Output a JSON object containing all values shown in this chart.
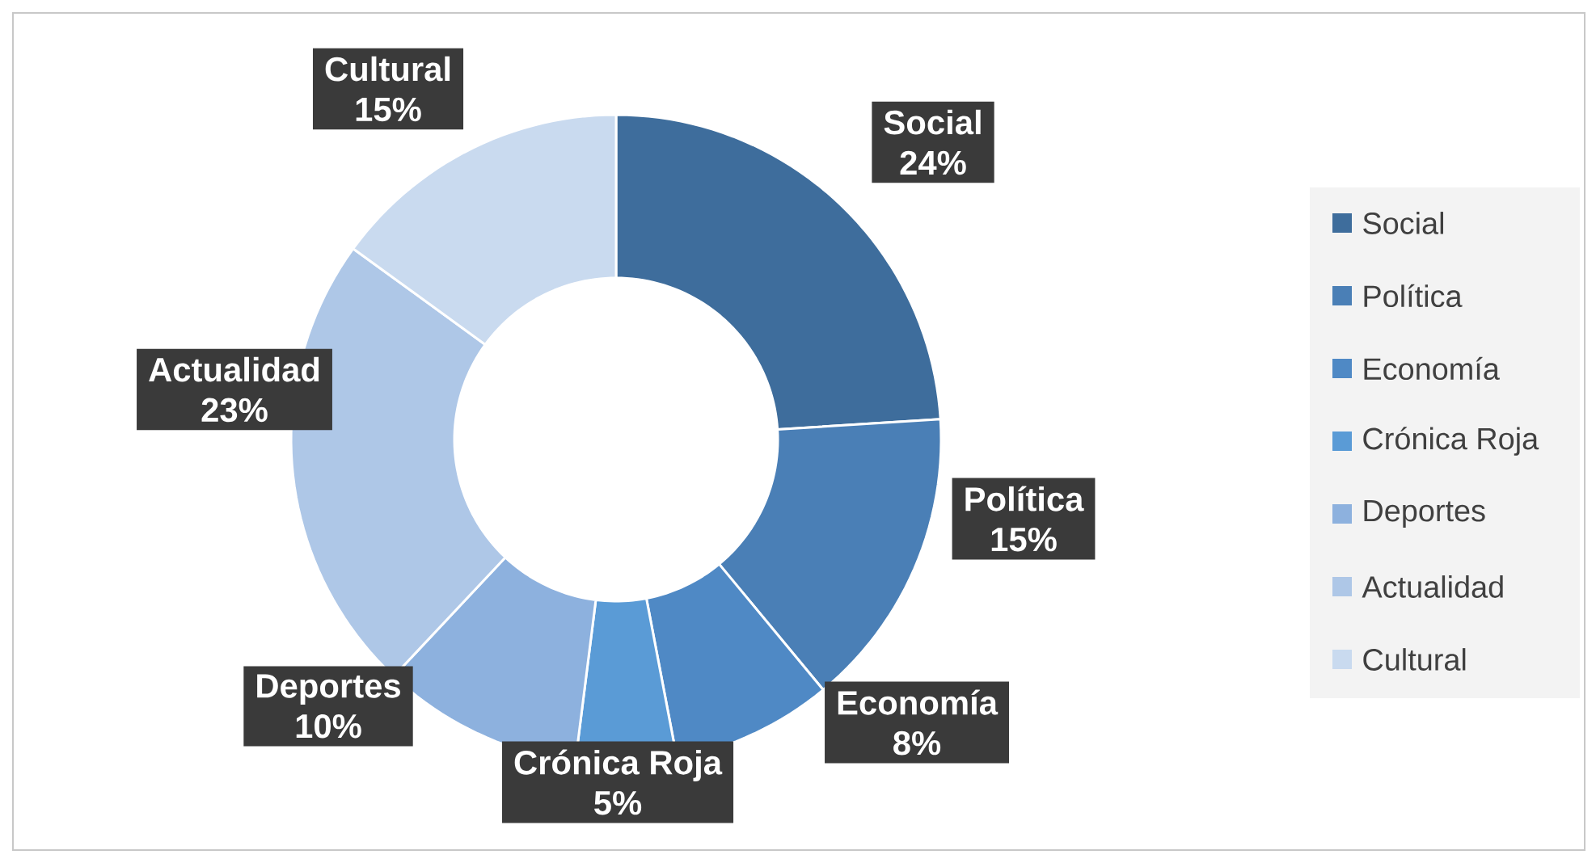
{
  "chart_data": {
    "type": "donut",
    "categories": [
      "Social",
      "Política",
      "Economía",
      "Crónica Roja",
      "Deportes",
      "Actualidad",
      "Cultural"
    ],
    "values": [
      24,
      15,
      8,
      5,
      10,
      23,
      15
    ],
    "value_labels": [
      "24%",
      "15%",
      "8%",
      "5%",
      "10%",
      "23%",
      "15%"
    ],
    "colors": [
      "#3e6d9c",
      "#4a7fb6",
      "#4f89c5",
      "#5a9bd6",
      "#8db1de",
      "#aec7e7",
      "#c9daef"
    ],
    "legend": "right"
  }
}
